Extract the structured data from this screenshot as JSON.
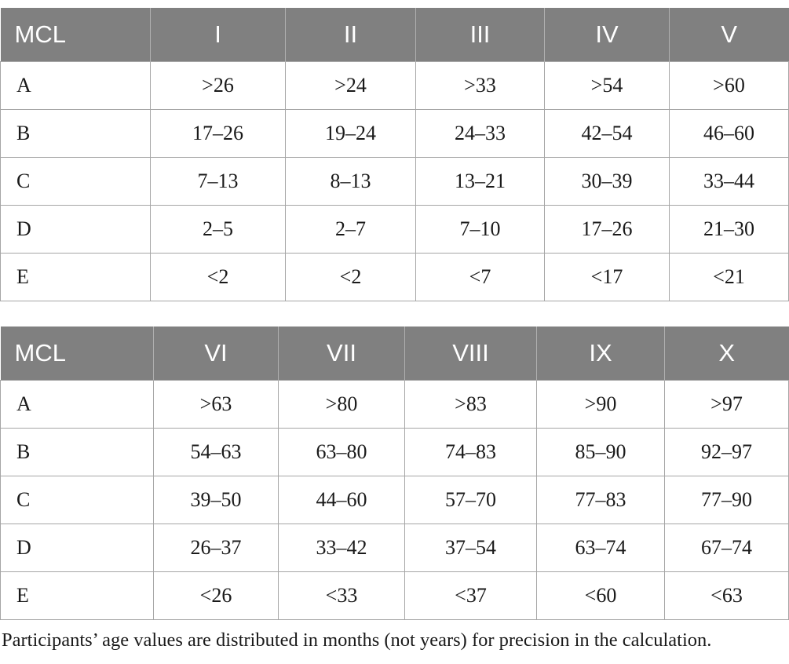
{
  "table1": {
    "headers": [
      "MCL",
      "I",
      "II",
      "III",
      "IV",
      "V"
    ],
    "rows": [
      [
        "A",
        ">26",
        ">24",
        ">33",
        ">54",
        ">60"
      ],
      [
        "B",
        "17–26",
        "19–24",
        "24–33",
        "42–54",
        "46–60"
      ],
      [
        "C",
        "7–13",
        "8–13",
        "13–21",
        "30–39",
        "33–44"
      ],
      [
        "D",
        "2–5",
        "2–7",
        "7–10",
        "17–26",
        "21–30"
      ],
      [
        "E",
        "<2",
        "<2",
        "<7",
        "<17",
        "<21"
      ]
    ]
  },
  "table2": {
    "headers": [
      "MCL",
      "VI",
      "VII",
      "VIII",
      "IX",
      "X"
    ],
    "rows": [
      [
        "A",
        ">63",
        ">80",
        ">83",
        ">90",
        ">97"
      ],
      [
        "B",
        "54–63",
        "63–80",
        "74–83",
        "85–90",
        "92–97"
      ],
      [
        "C",
        "39–50",
        "44–60",
        "57–70",
        "77–83",
        "77–90"
      ],
      [
        "D",
        "26–37",
        "33–42",
        "37–54",
        "63–74",
        "67–74"
      ],
      [
        "E",
        "<26",
        "<33",
        "<37",
        "<60",
        "<63"
      ]
    ]
  },
  "footnote": "Participants’ age values are distributed in months (not years) for precision in the calculation.",
  "colors": {
    "header_bg": "#808080",
    "header_text": "#ffffff",
    "grid": "#a6a6a6"
  }
}
